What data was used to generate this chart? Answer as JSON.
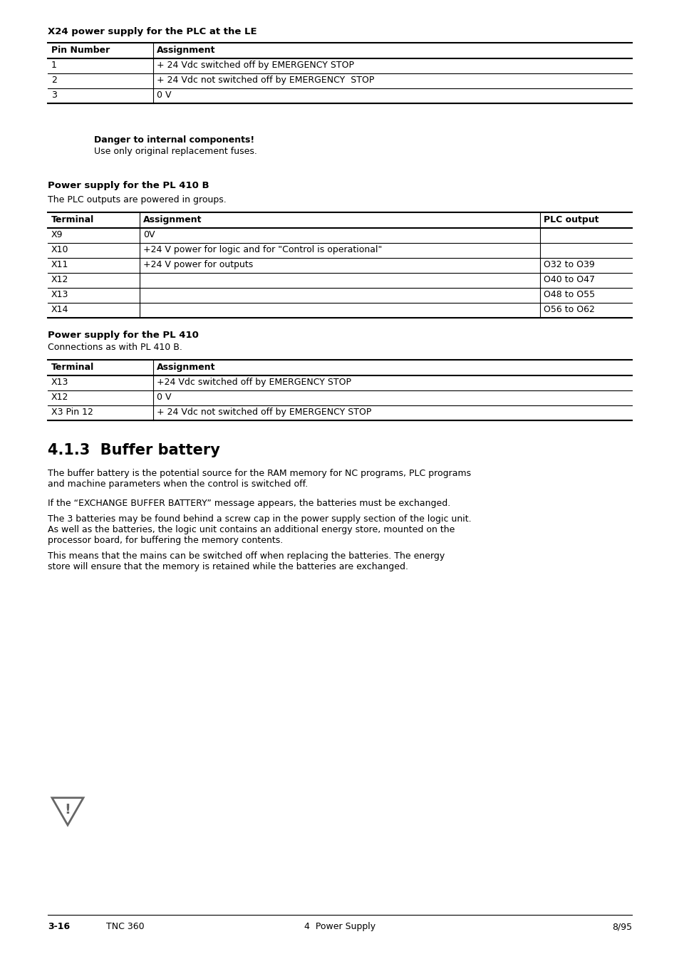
{
  "page_bg": "#ffffff",
  "text_color": "#000000",
  "section_title1": "X24 power supply for the PLC at the LE",
  "table1_headers": [
    "Pin Number",
    "Assignment"
  ],
  "table1_rows": [
    [
      "1",
      "+ 24 Vdc switched off by EMERGENCY STOP"
    ],
    [
      "2",
      "+ 24 Vdc not switched off by EMERGENCY  STOP"
    ],
    [
      "3",
      "0 V"
    ]
  ],
  "warning_bold": "Danger to internal components!",
  "warning_normal": "Use only original replacement fuses.",
  "section_title2": "Power supply for the PL 410 B",
  "section_para2": "The PLC outputs are powered in groups.",
  "table2_headers": [
    "Terminal",
    "Assignment",
    "PLC output"
  ],
  "table2_rows": [
    [
      "X9",
      "0V",
      ""
    ],
    [
      "X10",
      "+24 V power for logic and for \"Control is operational\"",
      ""
    ],
    [
      "X11",
      "+24 V power for outputs",
      "O32 to O39"
    ],
    [
      "X12",
      "",
      "O40 to O47"
    ],
    [
      "X13",
      "",
      "O48 to O55"
    ],
    [
      "X14",
      "",
      "O56 to O62"
    ]
  ],
  "section_title3": "Power supply for the PL 410",
  "section_para3": "Connections as with PL 410 B.",
  "table3_headers": [
    "Terminal",
    "Assignment"
  ],
  "table3_rows": [
    [
      "X13",
      "+24 Vdc switched off by EMERGENCY STOP"
    ],
    [
      "X12",
      "0 V"
    ],
    [
      "X3 Pin 12",
      "+ 24 Vdc not switched off by EMERGENCY STOP"
    ]
  ],
  "section_title4": "4.1.3  Buffer battery",
  "para1": "The buffer battery is the potential source for the RAM memory for NC programs, PLC programs\nand machine parameters when the control is switched off.",
  "para2": "If the “EXCHANGE BUFFER BATTERY” message appears, the batteries must be exchanged.",
  "para3": "The 3 batteries may be found behind a screw cap in the power supply section of the logic unit.\nAs well as the batteries, the logic unit contains an additional energy store, mounted on the\nprocessor board, for buffering the memory contents.",
  "para4": "This means that the mains can be switched off when replacing the batteries. The energy\nstore will ensure that the memory is retained while the batteries are exchanged.",
  "footer_left": "3-16",
  "footer_center_left": "TNC 360",
  "footer_center": "4  Power Supply",
  "footer_right": "8/95"
}
